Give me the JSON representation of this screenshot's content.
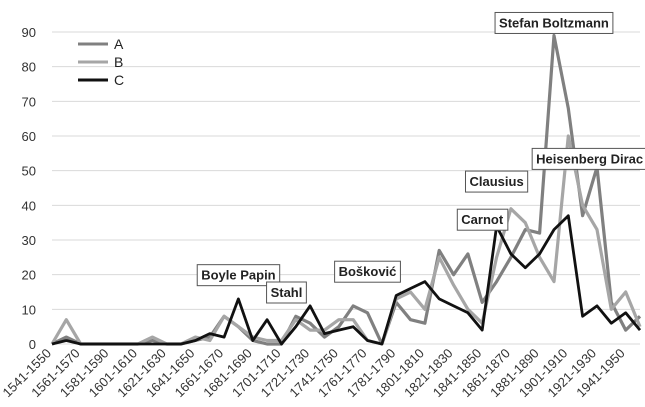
{
  "chart_data": {
    "type": "line",
    "x": [
      "1541-1550",
      "1551-1560",
      "1561-1570",
      "1571-1580",
      "1581-1590",
      "1591-1600",
      "1601-1610",
      "1611-1620",
      "1621-1630",
      "1631-1640",
      "1641-1650",
      "1651-1660",
      "1661-1670",
      "1671-1680",
      "1681-1690",
      "1691-1700",
      "1701-1710",
      "1711-1720",
      "1721-1730",
      "1731-1740",
      "1741-1750",
      "1751-1760",
      "1761-1770",
      "1771-1780",
      "1781-1790",
      "1791-1800",
      "1801-1810",
      "1811-1820",
      "1821-1830",
      "1831-1840",
      "1841-1850",
      "1851-1860",
      "1861-1870",
      "1871-1880",
      "1881-1890",
      "1891-1900",
      "1901-1910",
      "1911-1920",
      "1921-1930",
      "1931-1940",
      "1941-1950",
      "1951-1960"
    ],
    "x_tick_labels": [
      "1541-1550",
      "1561-1570",
      "1581-1590",
      "1601-1610",
      "1621-1630",
      "1641-1650",
      "1661-1670",
      "1681-1690",
      "1701-1710",
      "1721-1730",
      "1741-1750",
      "1761-1770",
      "1781-1790",
      "1801-1810",
      "1821-1830",
      "1841-1850",
      "1861-1870",
      "1881-1890",
      "1901-1910",
      "1921-1930",
      "1941-1950"
    ],
    "ylim": [
      0,
      90
    ],
    "y_ticks": [
      "0",
      "10",
      "20",
      "30",
      "40",
      "50",
      "60",
      "70",
      "80",
      "90"
    ],
    "grid": true,
    "legend_position": "top-left",
    "series": [
      {
        "name": "A",
        "color": "#808080",
        "values": [
          0,
          2,
          0,
          0,
          0,
          0,
          0,
          1,
          0,
          0,
          1,
          2,
          8,
          5,
          1,
          0,
          0,
          8,
          6,
          2,
          5,
          11,
          9,
          0,
          12,
          7,
          6,
          27,
          20,
          26,
          12,
          18,
          25,
          33,
          32,
          89,
          68,
          37,
          51,
          12,
          4,
          8
        ]
      },
      {
        "name": "B",
        "color": "#a6a6a6",
        "values": [
          0,
          7,
          0,
          0,
          0,
          0,
          0,
          2,
          0,
          0,
          2,
          1,
          8,
          5,
          2,
          1,
          1,
          7,
          4,
          4,
          7,
          7,
          1,
          0,
          13,
          15,
          10,
          25,
          17,
          10,
          6,
          25,
          39,
          35,
          25,
          18,
          60,
          40,
          33,
          10,
          15,
          5
        ]
      },
      {
        "name": "C",
        "color": "#111111",
        "values": [
          0,
          1,
          0,
          0,
          0,
          0,
          0,
          0,
          0,
          0,
          1,
          3,
          2,
          13,
          1,
          7,
          0,
          5,
          11,
          3,
          4,
          5,
          1,
          0,
          14,
          16,
          18,
          13,
          11,
          9,
          4,
          34,
          26,
          22,
          26,
          33,
          37,
          8,
          11,
          6,
          9,
          4
        ]
      }
    ],
    "annotations": [
      {
        "text": "Stefan Boltzmann",
        "x": "1891-1900",
        "y": 89
      },
      {
        "text": "Heisenberg Dirac",
        "x": "1911-1920",
        "y": 57
      },
      {
        "text": "Clausius",
        "x": "1851-1860",
        "y": 47
      },
      {
        "text": "Carnot",
        "x": "1841-1850",
        "y": 36
      },
      {
        "text": "Bošković",
        "x": "1761-1770",
        "y": 21
      },
      {
        "text": "Boyle Papin",
        "x": "1671-1680",
        "y": 20
      },
      {
        "text": "Stahl",
        "x": "1701-1710",
        "y": 15
      }
    ]
  }
}
